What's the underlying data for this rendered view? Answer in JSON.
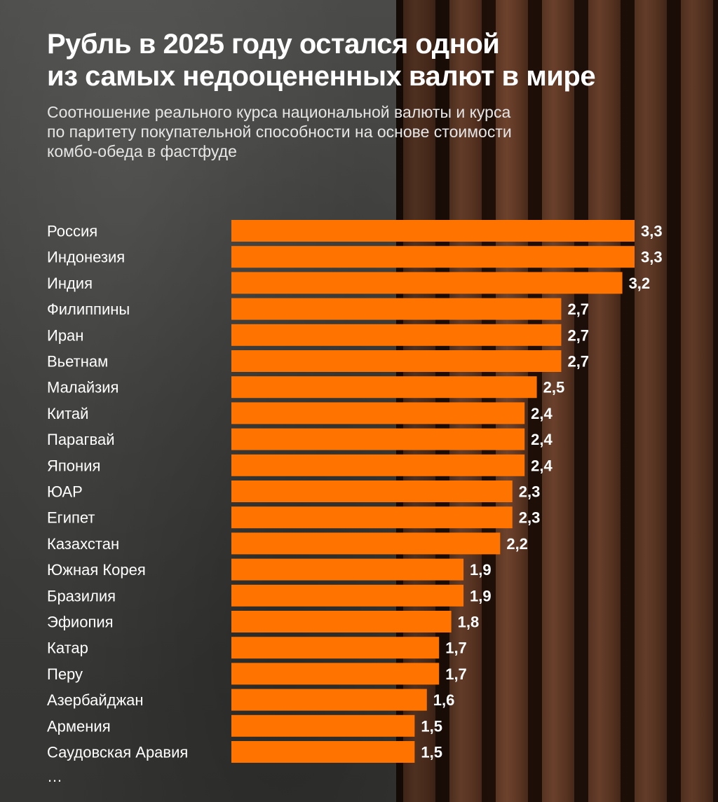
{
  "header": {
    "title_line1": "Рубль в 2025 году остался одной",
    "title_line2": "из самых недооцененных валют в мире",
    "subtitle_line1": "Соотношение реального курса национальной валюты и курса",
    "subtitle_line2": "по паритету покупательной способности на основе стоимости",
    "subtitle_line3": "комбо-обеда в фастфуде"
  },
  "chart_data": {
    "type": "bar",
    "orientation": "horizontal",
    "title": "Рубль в 2025 году остался одной из самых недооцененных валют в мире",
    "subtitle": "Соотношение реального курса национальной валюты и курса по паритету покупательной способности на основе стоимости комбо-обеда в фастфуде",
    "categories": [
      "Россия",
      "Индонезия",
      "Индия",
      "Филиппины",
      "Иран",
      "Вьетнам",
      "Малайзия",
      "Китай",
      "Парагвай",
      "Япония",
      "ЮАР",
      "Египет",
      "Казахстан",
      "Южная Корея",
      "Бразилия",
      "Эфиопия",
      "Катар",
      "Перу",
      "Азербайджан",
      "Армения",
      "Саудовская Аравия"
    ],
    "values": [
      3.3,
      3.3,
      3.2,
      2.7,
      2.7,
      2.7,
      2.5,
      2.4,
      2.4,
      2.4,
      2.3,
      2.3,
      2.2,
      1.9,
      1.9,
      1.8,
      1.7,
      1.7,
      1.6,
      1.5,
      1.5
    ],
    "value_labels": [
      "3,3",
      "3,3",
      "3,2",
      "2,7",
      "2,7",
      "2,7",
      "2,5",
      "2,4",
      "2,4",
      "2,4",
      "2,3",
      "2,3",
      "2,2",
      "1,9",
      "1,9",
      "1,8",
      "1,7",
      "1,7",
      "1,6",
      "1,5",
      "1,5"
    ],
    "xlim": [
      0,
      3.3
    ],
    "grid": false,
    "bar_color": "#ff7300",
    "more_indicator": "…"
  }
}
